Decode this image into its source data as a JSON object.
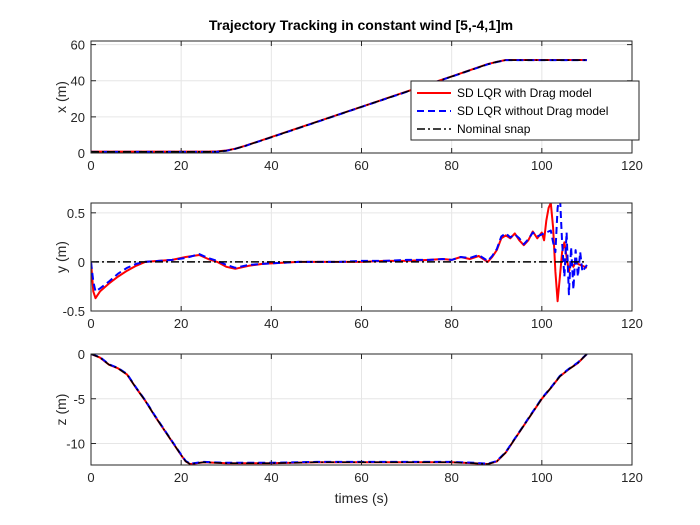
{
  "chart_data": [
    {
      "type": "line",
      "title": "Trajectory Tracking in constant wind [5,-4,1]m",
      "xlabel": "",
      "ylabel": "x (m)",
      "xlim": [
        0,
        120
      ],
      "ylim": [
        0,
        62
      ],
      "xticks": [
        0,
        20,
        40,
        60,
        80,
        100,
        120
      ],
      "xtick_labels": [
        "0",
        "20",
        "40",
        "60",
        "80",
        "100",
        "120"
      ],
      "yticks": [
        0,
        20,
        40,
        60
      ],
      "ytick_labels": [
        "0",
        "20",
        "40",
        "60"
      ],
      "grid": true,
      "legend": {
        "placement": "right",
        "entries": [
          "SD LQR with Drag model",
          "SD LQR without Drag model",
          "Nominal snap"
        ]
      },
      "series": [
        {
          "name": "SD LQR with Drag model",
          "color": "#ff0000",
          "dash": "solid",
          "x": [
            0,
            26,
            28,
            30,
            32,
            34,
            36,
            40,
            50,
            60,
            70,
            80,
            88,
            90,
            92,
            100,
            110
          ],
          "y": [
            0.8,
            0.8,
            0.9,
            1.4,
            2.4,
            3.8,
            5.5,
            8.8,
            17.2,
            25.6,
            34.0,
            42.4,
            49.2,
            50.5,
            51.5,
            51.5,
            51.5
          ]
        },
        {
          "name": "SD LQR without Drag model",
          "color": "#0000ff",
          "dash": "dashed",
          "x": [
            0,
            26,
            28,
            30,
            32,
            34,
            36,
            40,
            50,
            60,
            70,
            80,
            88,
            90,
            92,
            100,
            110
          ],
          "y": [
            0.6,
            0.6,
            0.7,
            1.2,
            2.3,
            3.7,
            5.4,
            8.7,
            17.1,
            25.5,
            33.9,
            42.3,
            49.1,
            50.4,
            51.4,
            51.4,
            51.4
          ]
        },
        {
          "name": "Nominal snap",
          "color": "#000000",
          "dash": "dashdot",
          "x": [
            0,
            26,
            28,
            30,
            32,
            34,
            36,
            40,
            50,
            60,
            70,
            80,
            88,
            90,
            92,
            100,
            110
          ],
          "y": [
            0.7,
            0.7,
            0.8,
            1.3,
            2.35,
            3.75,
            5.45,
            8.75,
            17.15,
            25.55,
            33.95,
            42.35,
            49.15,
            50.45,
            51.45,
            51.45,
            51.45
          ]
        }
      ]
    },
    {
      "type": "line",
      "title": "",
      "xlabel": "",
      "ylabel": "y (m)",
      "xlim": [
        0,
        120
      ],
      "ylim": [
        -0.5,
        0.6
      ],
      "xticks": [
        0,
        20,
        40,
        60,
        80,
        100,
        120
      ],
      "xtick_labels": [
        "0",
        "20",
        "40",
        "60",
        "80",
        "100",
        "120"
      ],
      "yticks": [
        -0.5,
        0,
        0.5
      ],
      "ytick_labels": [
        "-0.5",
        "0",
        "0.5"
      ],
      "grid": true,
      "series": [
        {
          "name": "SD LQR with Drag model",
          "color": "#ff0000",
          "dash": "solid",
          "x": [
            0,
            0.5,
            1,
            2,
            4,
            6,
            8,
            10,
            12,
            15,
            18,
            21,
            24,
            26,
            28,
            30,
            32,
            35,
            38,
            42,
            46,
            50,
            55,
            60,
            65,
            70,
            75,
            78,
            80,
            82,
            84,
            86,
            88,
            89,
            90,
            91,
            92,
            93,
            94,
            95,
            96,
            97,
            98,
            99,
            100,
            100.5,
            101,
            101.5,
            102,
            102.5,
            103,
            103.5,
            104,
            104.5,
            105,
            105.5,
            106,
            106.5,
            107,
            107.5,
            108,
            109,
            110
          ],
          "y": [
            0,
            -0.3,
            -0.37,
            -0.3,
            -0.22,
            -0.15,
            -0.09,
            -0.04,
            0.0,
            0.01,
            0.02,
            0.05,
            0.07,
            0.03,
            0.0,
            -0.05,
            -0.07,
            -0.04,
            -0.02,
            -0.01,
            0.0,
            0.0,
            0.0,
            0.0,
            0.01,
            0.01,
            0.02,
            0.03,
            0.02,
            0.05,
            0.03,
            0.06,
            0.0,
            0.05,
            0.12,
            0.24,
            0.27,
            0.24,
            0.29,
            0.22,
            0.17,
            0.22,
            0.31,
            0.24,
            0.3,
            0.22,
            0.42,
            0.55,
            0.6,
            0.35,
            -0.1,
            -0.4,
            -0.15,
            0.1,
            0.2,
            0.05,
            -0.1,
            0.0,
            -0.05,
            0.0,
            -0.02,
            -0.04,
            -0.06
          ]
        },
        {
          "name": "SD LQR without Drag model",
          "color": "#0000ff",
          "dash": "dashed",
          "x": [
            0,
            0.5,
            1,
            2,
            4,
            6,
            8,
            10,
            12,
            15,
            18,
            21,
            24,
            26,
            28,
            30,
            32,
            35,
            38,
            42,
            46,
            50,
            55,
            60,
            65,
            70,
            75,
            78,
            80,
            82,
            84,
            86,
            88,
            89,
            90,
            91,
            92,
            93,
            94,
            95,
            96,
            97,
            98,
            99,
            100,
            101,
            102,
            102.5,
            103,
            103.5,
            104,
            104.5,
            105,
            105.5,
            106,
            106.5,
            107,
            107.5,
            108,
            108.5,
            109,
            110
          ],
          "y": [
            0,
            -0.2,
            -0.3,
            -0.27,
            -0.2,
            -0.12,
            -0.06,
            -0.02,
            0.0,
            0.01,
            0.02,
            0.04,
            0.08,
            0.04,
            0.01,
            -0.03,
            -0.06,
            -0.03,
            -0.02,
            -0.01,
            0.0,
            0.0,
            0.0,
            0.01,
            0.01,
            0.02,
            0.02,
            0.03,
            0.02,
            0.05,
            0.04,
            0.07,
            0.01,
            0.06,
            0.13,
            0.26,
            0.29,
            0.25,
            0.28,
            0.24,
            0.18,
            0.23,
            0.3,
            0.26,
            0.28,
            0.3,
            0.32,
            0.2,
            0.1,
            0.55,
            0.68,
            0.2,
            -0.15,
            0.3,
            -0.33,
            0.15,
            -0.28,
            0.12,
            -0.15,
            0.1,
            -0.1,
            -0.03
          ]
        },
        {
          "name": "Nominal snap",
          "color": "#000000",
          "dash": "dashdot",
          "x": [
            0,
            110
          ],
          "y": [
            0,
            0
          ]
        }
      ]
    },
    {
      "type": "line",
      "title": "",
      "xlabel": "times (s)",
      "ylabel": "z (m)",
      "xlim": [
        0,
        120
      ],
      "ylim": [
        -12.4,
        0
      ],
      "xticks": [
        0,
        20,
        40,
        60,
        80,
        100,
        120
      ],
      "xtick_labels": [
        "0",
        "20",
        "40",
        "60",
        "80",
        "100",
        "120"
      ],
      "yticks": [
        -10,
        -5,
        0
      ],
      "ytick_labels": [
        "-10",
        "-5",
        "0"
      ],
      "grid": true,
      "series": [
        {
          "name": "SD LQR with Drag model",
          "color": "#ff0000",
          "dash": "solid",
          "x": [
            0,
            2,
            4,
            6,
            8,
            10,
            12,
            14,
            16,
            18,
            20,
            21,
            22,
            25,
            30,
            40,
            50,
            60,
            70,
            80,
            85,
            88,
            90,
            92,
            94,
            96,
            98,
            100,
            102,
            104,
            106,
            108,
            110
          ],
          "y": [
            0,
            -0.4,
            -1.2,
            -1.6,
            -2.3,
            -3.8,
            -5.2,
            -6.8,
            -8.3,
            -9.8,
            -11.3,
            -12.0,
            -12.3,
            -12.1,
            -12.2,
            -12.2,
            -12.1,
            -12.1,
            -12.1,
            -12.1,
            -12.2,
            -12.3,
            -12.0,
            -11.0,
            -9.5,
            -8.0,
            -6.5,
            -5.0,
            -3.8,
            -2.5,
            -1.7,
            -1.0,
            0
          ]
        },
        {
          "name": "SD LQR without Drag model",
          "color": "#0000ff",
          "dash": "dashed",
          "x": [
            0,
            2,
            4,
            6,
            8,
            10,
            12,
            14,
            16,
            18,
            20,
            21,
            22,
            25,
            30,
            40,
            50,
            60,
            70,
            80,
            85,
            88,
            90,
            92,
            94,
            96,
            98,
            100,
            102,
            104,
            106,
            108,
            110
          ],
          "y": [
            0,
            -0.35,
            -1.15,
            -1.55,
            -2.25,
            -3.75,
            -5.15,
            -6.75,
            -8.25,
            -9.75,
            -11.25,
            -11.95,
            -12.25,
            -12.05,
            -12.15,
            -12.15,
            -12.05,
            -12.05,
            -12.05,
            -12.05,
            -12.15,
            -12.25,
            -11.95,
            -10.95,
            -9.45,
            -7.95,
            -6.45,
            -4.95,
            -3.75,
            -2.45,
            -1.65,
            -0.95,
            0
          ]
        },
        {
          "name": "Nominal snap",
          "color": "#000000",
          "dash": "dashdot",
          "x": [
            0,
            2,
            4,
            6,
            8,
            10,
            12,
            14,
            16,
            18,
            20,
            21,
            22,
            25,
            30,
            40,
            50,
            60,
            70,
            80,
            85,
            88,
            90,
            92,
            94,
            96,
            98,
            100,
            102,
            104,
            106,
            108,
            110
          ],
          "y": [
            0,
            -0.4,
            -1.2,
            -1.6,
            -2.3,
            -3.8,
            -5.2,
            -6.8,
            -8.3,
            -9.8,
            -11.3,
            -12.0,
            -12.3,
            -12.1,
            -12.2,
            -12.2,
            -12.1,
            -12.1,
            -12.1,
            -12.1,
            -12.2,
            -12.3,
            -12.0,
            -11.0,
            -9.5,
            -8.0,
            -6.5,
            -5.0,
            -3.8,
            -2.5,
            -1.7,
            -1.0,
            0
          ]
        }
      ]
    }
  ]
}
